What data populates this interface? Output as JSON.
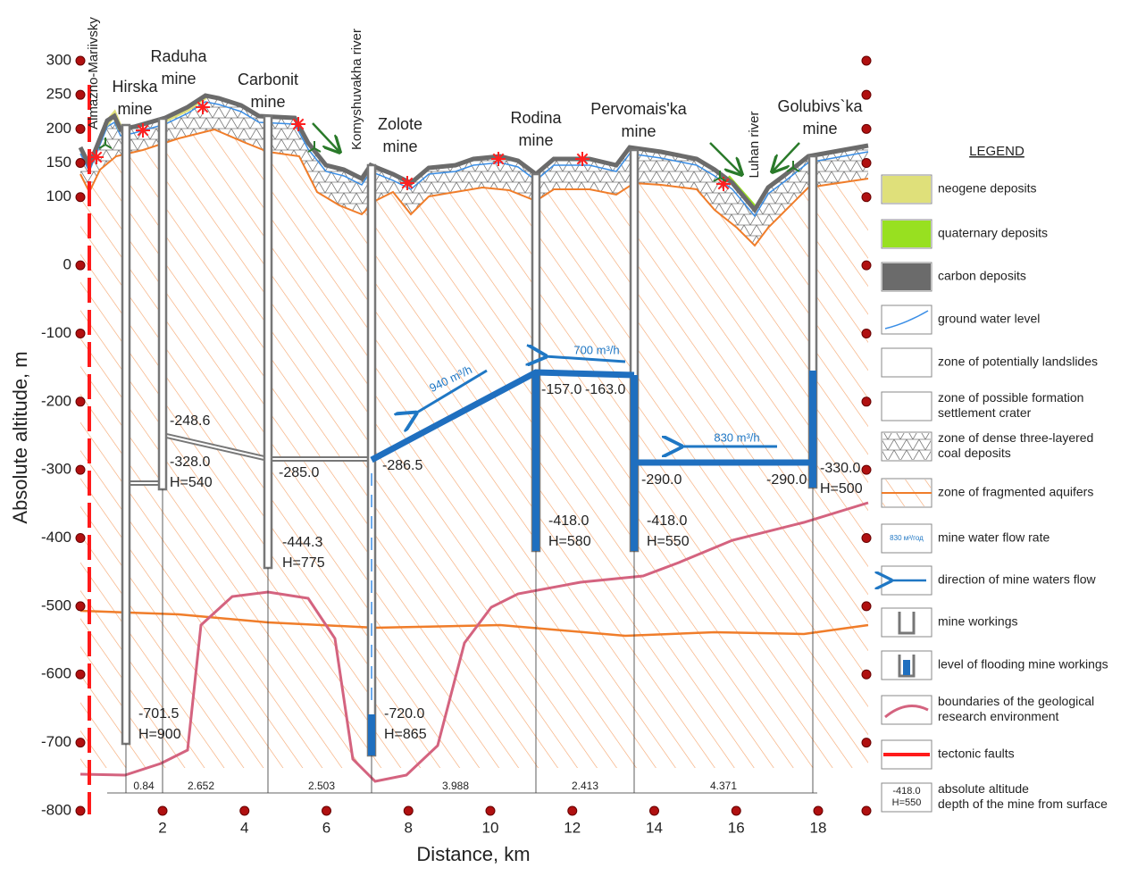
{
  "axes": {
    "y_label": "Absolute altitude, m",
    "x_label": "Distance, km",
    "yticks": [
      300,
      250,
      200,
      150,
      100,
      0,
      -100,
      -200,
      -300,
      -400,
      -500,
      -600,
      -700,
      -800
    ],
    "xticks": [
      2,
      4,
      6,
      8,
      10,
      12,
      14,
      16,
      18
    ]
  },
  "mines": [
    {
      "lines": [
        "Almazno-Mariivsky"
      ]
    },
    {
      "lines": [
        "Hirska",
        "mine"
      ]
    },
    {
      "lines": [
        "Raduha",
        "mine"
      ]
    },
    {
      "lines": [
        "Carbonit",
        "mine"
      ]
    },
    {
      "lines": [
        "Zolote",
        "mine"
      ]
    },
    {
      "lines": [
        "Rodina",
        "mine"
      ]
    },
    {
      "lines": [
        "Pervomais'ka",
        "mine"
      ]
    },
    {
      "lines": [
        "Golubivs`ka",
        "mine"
      ]
    }
  ],
  "rivers": [
    "Komyshuvakha river",
    "Luhan river"
  ],
  "depth_labels": [
    {
      "lines": [
        "-248.6"
      ]
    },
    {
      "lines": [
        "-328.0",
        "H=540"
      ]
    },
    {
      "lines": [
        "-285.0"
      ]
    },
    {
      "lines": [
        "-444.3",
        "H=775"
      ]
    },
    {
      "lines": [
        "-286.5"
      ]
    },
    {
      "lines": [
        "-701.5",
        "H=900"
      ]
    },
    {
      "lines": [
        "-720.0",
        "H=865"
      ]
    },
    {
      "lines": [
        "-157.0"
      ]
    },
    {
      "lines": [
        "-163.0"
      ]
    },
    {
      "lines": [
        "-418.0",
        "H=580"
      ]
    },
    {
      "lines": [
        "-418.0",
        "H=550"
      ]
    },
    {
      "lines": [
        "-290.0"
      ]
    },
    {
      "lines": [
        "-290.0"
      ]
    },
    {
      "lines": [
        "-330.0",
        "H=500"
      ]
    }
  ],
  "flows": [
    "940 m³/h",
    "700 m³/h",
    "830 m³/h"
  ],
  "segments": [
    "0.84",
    "2.652",
    "2.503",
    "3.988",
    "2.413",
    "4.371"
  ],
  "legend": {
    "title": "LEGEND",
    "items": [
      {
        "lines": [
          "neogene deposits"
        ]
      },
      {
        "lines": [
          "quaternary deposits"
        ]
      },
      {
        "lines": [
          "carbon deposits"
        ]
      },
      {
        "lines": [
          "ground water level"
        ]
      },
      {
        "lines": [
          "zone of potentially landslides"
        ]
      },
      {
        "lines": [
          "zone of possible formation",
          "settlement crater"
        ]
      },
      {
        "lines": [
          "zone of dense three-layered",
          "coal deposits"
        ]
      },
      {
        "lines": [
          "zone of fragmented aquifers"
        ]
      },
      {
        "lines": [
          "mine water flow rate"
        ],
        "swatch_text": [
          "830 м³/год"
        ]
      },
      {
        "lines": [
          "direction of mine waters flow"
        ]
      },
      {
        "lines": [
          "mine workings"
        ]
      },
      {
        "lines": [
          "level of flooding mine workings"
        ]
      },
      {
        "lines": [
          "boundaries of the geological",
          "research environment"
        ]
      },
      {
        "lines": [
          "tectonic faults"
        ]
      },
      {
        "lines": [
          "absolute altitude",
          "depth of the mine from surface"
        ],
        "swatch_text": [
          "-418.0",
          "H=550"
        ]
      }
    ]
  }
}
